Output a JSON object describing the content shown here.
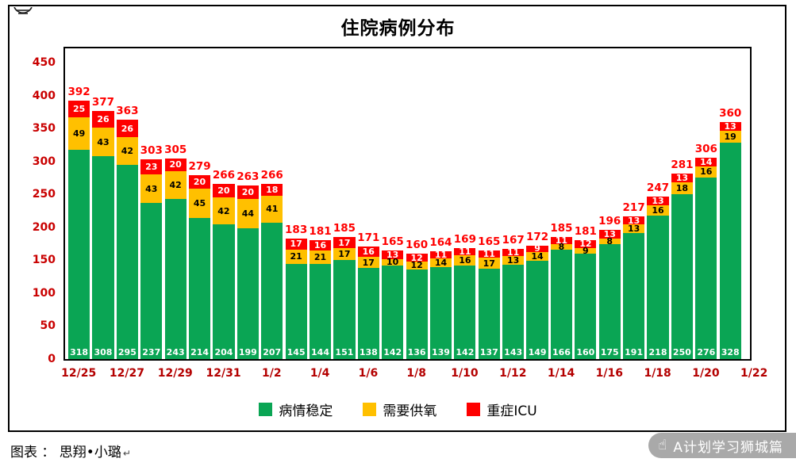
{
  "title": "住院病例分布",
  "chart_data": {
    "type": "bar",
    "stacked": true,
    "title": "住院病例分布",
    "ylim": [
      0,
      450
    ],
    "y_ticks": [
      450,
      400,
      350,
      300,
      250,
      200,
      150,
      100,
      50,
      0
    ],
    "x_tick_labels": [
      "12/25",
      "12/27",
      "12/29",
      "12/31",
      "1/2",
      "1/4",
      "1/6",
      "1/8",
      "1/10",
      "1/12",
      "1/14",
      "1/16",
      "1/18",
      "1/20",
      "1/22"
    ],
    "grid": false,
    "legend_position": "bottom",
    "series": [
      {
        "name": "病情稳定",
        "color": "#0aa554",
        "values": [
          318,
          308,
          295,
          237,
          243,
          214,
          204,
          199,
          207,
          145,
          144,
          151,
          138,
          142,
          136,
          139,
          142,
          137,
          143,
          149,
          166,
          160,
          175,
          191,
          218,
          250,
          276,
          328
        ]
      },
      {
        "name": "需要供氧",
        "color": "#ffc000",
        "values": [
          49,
          43,
          42,
          43,
          42,
          45,
          42,
          44,
          41,
          21,
          21,
          17,
          17,
          10,
          12,
          14,
          16,
          17,
          13,
          14,
          8,
          9,
          8,
          13,
          16,
          18,
          16,
          19
        ]
      },
      {
        "name": "重症ICU",
        "color": "#fe0000",
        "values": [
          25,
          26,
          26,
          23,
          20,
          20,
          20,
          20,
          18,
          17,
          16,
          17,
          16,
          13,
          12,
          11,
          11,
          11,
          11,
          9,
          11,
          12,
          13,
          13,
          13,
          13,
          14,
          13
        ]
      }
    ],
    "totals": [
      392,
      377,
      363,
      303,
      305,
      279,
      266,
      263,
      266,
      183,
      181,
      185,
      171,
      165,
      160,
      164,
      169,
      165,
      167,
      172,
      185,
      181,
      196,
      217,
      247,
      281,
      306,
      360
    ]
  },
  "legend": [
    {
      "label": "病情稳定",
      "color": "#0aa554"
    },
    {
      "label": "需要供氧",
      "color": "#ffc000"
    },
    {
      "label": "重症ICU",
      "color": "#fe0000"
    }
  ],
  "footer": {
    "source_label": "图表 ： 思翔•小璐",
    "return_mark": "↵"
  },
  "watermark": {
    "icon_name": "hand-pointer-icon",
    "icon_glyph": "☝",
    "text": "A计划学习狮城篇"
  },
  "colors": {
    "total_label": "#ff0000",
    "y_axis_label": "#c90000",
    "x_axis_label": "#b40000",
    "border": "#000000"
  }
}
